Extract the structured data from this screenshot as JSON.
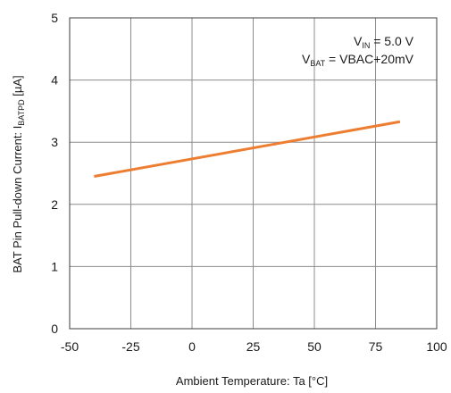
{
  "chart_data": {
    "type": "line",
    "xlabel": "Ambient Temperature: Ta [°C]",
    "ylabel": {
      "main": "BAT Pin Pull-down Current: I",
      "sub": "BATPD",
      "unit": " [µA]"
    },
    "xlim": [
      -50,
      100
    ],
    "ylim": [
      0,
      5
    ],
    "xticks": [
      -50,
      -25,
      0,
      25,
      50,
      75,
      100
    ],
    "yticks": [
      0,
      1,
      2,
      3,
      4,
      5
    ],
    "xtick_labels": [
      "-50",
      "-25",
      "0",
      "25",
      "50",
      "75",
      "100"
    ],
    "ytick_labels": [
      "0",
      "1",
      "2",
      "3",
      "4",
      "5"
    ],
    "grid": true,
    "series": [
      {
        "color": "#ed7d31",
        "x": [
          -40,
          85
        ],
        "y": [
          2.45,
          3.33
        ]
      }
    ],
    "annotations": [
      {
        "main": "V",
        "sub": "IN",
        "rest": " = 5.0 V"
      },
      {
        "main": "V",
        "sub": "BAT",
        "rest": " = VBAC+20mV"
      }
    ]
  }
}
